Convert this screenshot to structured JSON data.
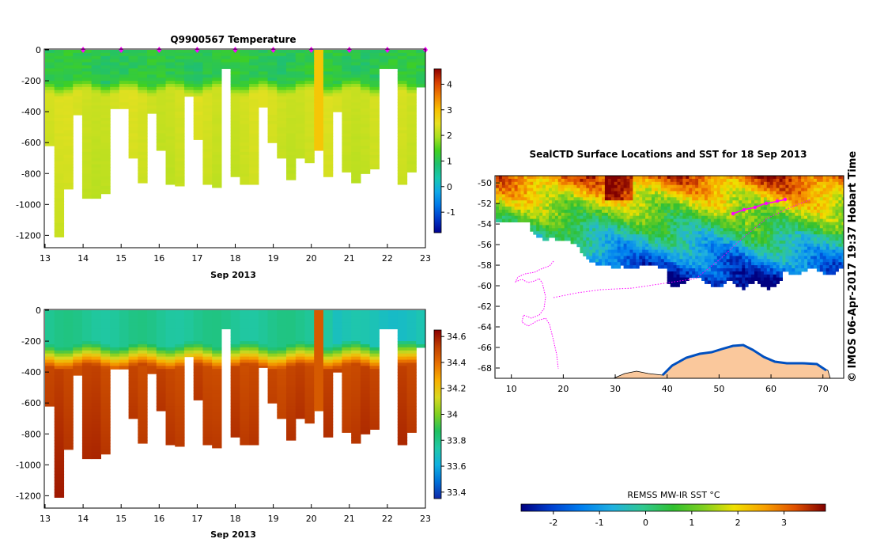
{
  "colors": {
    "temperature_ramp": [
      "#00008f",
      "#0038c8",
      "#0078e8",
      "#10a8e8",
      "#18c8b0",
      "#20c070",
      "#40d020",
      "#a8e020",
      "#e8e020",
      "#f8c000",
      "#f08000",
      "#d84000",
      "#8c0000"
    ],
    "salinity_ramp": [
      "#1028a8",
      "#0070d8",
      "#10b0e0",
      "#20c8a8",
      "#20c060",
      "#80d020",
      "#d8d820",
      "#f8b000",
      "#e87000",
      "#c04000",
      "#8c0000"
    ],
    "sst_ramp": [
      "#000080",
      "#0040d0",
      "#0080f0",
      "#20b0e0",
      "#30c890",
      "#30c030",
      "#80d020",
      "#f0e000",
      "#f8a000",
      "#e05000",
      "#800000"
    ],
    "land": "#fac89c",
    "track": "#ff00ff",
    "gap": "#ffffff"
  },
  "credit": "© IMOS 06-Apr-2017 19:37 Hobart Time",
  "chart_data": [
    {
      "id": "temperature-section",
      "type": "heatmap",
      "title": "Q9900567  Temperature",
      "xlabel": "Sep 2013",
      "ylabel": "",
      "xlim": [
        13,
        23
      ],
      "ylim": [
        -1280,
        0
      ],
      "x_ticks": [
        "13",
        "14",
        "15",
        "16",
        "17",
        "18",
        "19",
        "20",
        "21",
        "22",
        "23"
      ],
      "y_ticks": [
        "0",
        "-200",
        "-400",
        "-600",
        "-800",
        "-1000",
        "-1200"
      ],
      "colorbar": {
        "range": [
          -1.8,
          4.6
        ],
        "ticks": [
          "-1",
          "0",
          "1",
          "2",
          "3",
          "4"
        ]
      },
      "profile_times": [
        14.0,
        15.0,
        16.0,
        17.0,
        18.0,
        19.0,
        20.0,
        21.0,
        22.0,
        23.0
      ],
      "profiles_max_depth": [
        -620,
        -1210,
        -900,
        -420,
        -960,
        -960,
        -930,
        -380,
        -380,
        -700,
        -860,
        -410,
        -650,
        -870,
        -880,
        -300,
        -580,
        -870,
        -890,
        -120,
        -820,
        -870,
        -870,
        -370,
        -600,
        -700,
        -840,
        -700,
        -730,
        -650,
        -820,
        -400,
        -790,
        -860,
        -800,
        -770,
        -120,
        -120,
        -870,
        -790,
        -240
      ],
      "mixed_layer_temp": 1.1,
      "deep_temp": 2.3
    },
    {
      "id": "salinity-section",
      "type": "heatmap",
      "title": "",
      "xlabel": "Sep 2013",
      "ylabel": "",
      "xlim": [
        13,
        23
      ],
      "ylim": [
        -1280,
        0
      ],
      "x_ticks": [
        "13",
        "14",
        "15",
        "16",
        "17",
        "18",
        "19",
        "20",
        "21",
        "22",
        "23"
      ],
      "y_ticks": [
        "0",
        "-200",
        "-400",
        "-600",
        "-800",
        "-1000",
        "-1200"
      ],
      "colorbar": {
        "range": [
          33.35,
          34.65
        ],
        "ticks": [
          "33.4",
          "33.6",
          "33.8",
          "34",
          "34.2",
          "34.4",
          "34.6"
        ]
      },
      "surface_salinity": 33.78,
      "deep_salinity": 34.5
    },
    {
      "id": "sst-map",
      "type": "heatmap",
      "title": "SealCTD Surface Locations and SST for 18 Sep 2013",
      "xlabel": "",
      "ylabel": "",
      "xlim": [
        7,
        74
      ],
      "ylim": [
        -69,
        -49.3
      ],
      "x_ticks": [
        "10",
        "20",
        "30",
        "40",
        "50",
        "60",
        "70"
      ],
      "y_ticks": [
        "-50",
        "-52",
        "-54",
        "-56",
        "-58",
        "-60",
        "-62",
        "-64",
        "-66",
        "-68"
      ],
      "colorbar": {
        "label": "REMSS MW-IR SST °C",
        "range": [
          -2.7,
          3.9
        ],
        "ticks": [
          "-2",
          "-1",
          "0",
          "1",
          "2",
          "3"
        ]
      }
    }
  ]
}
